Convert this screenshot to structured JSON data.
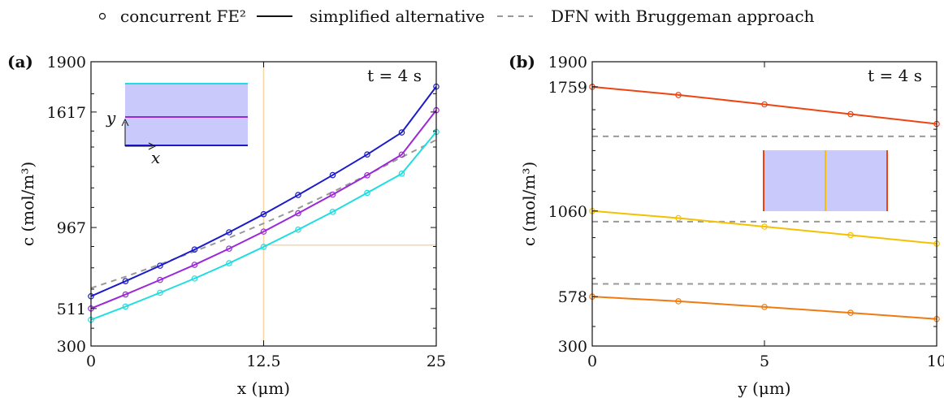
{
  "legend": [
    {
      "label": "concurrent FE²",
      "style": "marker",
      "color": "#111111"
    },
    {
      "label": "simplified alternative",
      "style": "solid",
      "color": "#111111"
    },
    {
      "label": "DFN with Bruggeman approach",
      "style": "dashed",
      "color": "#999999"
    }
  ],
  "chart_data": [
    {
      "panel": "(a)",
      "type": "line",
      "annotation": "t = 4 s",
      "xlabel": "x (μm)",
      "ylabel": "c (mol/m³)",
      "xlim": [
        0,
        25
      ],
      "ylim": [
        300,
        1900
      ],
      "xticks": [
        0,
        12.5,
        25
      ],
      "xtick_labels": [
        "0",
        "12.5",
        "25"
      ],
      "yticks": [
        300,
        511,
        967,
        1617,
        1900
      ],
      "ytick_labels": [
        "300",
        "511",
        "967",
        "1617",
        "1900"
      ],
      "yminor": [
        400,
        620,
        740,
        860,
        1080,
        1190,
        1310,
        1420,
        1510,
        1720
      ],
      "x": [
        0,
        2.5,
        5,
        7.5,
        10,
        12.5,
        15,
        17.5,
        20,
        22.5,
        25
      ],
      "series": [
        {
          "color": "#1a1acc",
          "values": [
            580,
            665,
            752,
            843,
            940,
            1042,
            1150,
            1262,
            1378,
            1502,
            1760
          ]
        },
        {
          "color": "#9a28d8",
          "values": [
            511,
            590,
            672,
            757,
            848,
            944,
            1047,
            1152,
            1261,
            1377,
            1627
          ]
        },
        {
          "color": "#22dde0",
          "values": [
            448,
            522,
            600,
            680,
            766,
            858,
            955,
            1055,
            1162,
            1270,
            1505
          ]
        }
      ],
      "dfn": {
        "color": "#999999",
        "values": [
          626,
          690,
          760,
          833,
          909,
          990,
          1075,
          1167,
          1263,
          1363,
          1460
        ]
      },
      "crosshair": {
        "x": 12.5,
        "y": 868,
        "color": "#f5d6a8"
      },
      "inset": {
        "xlabel": "x",
        "ylabel": "y",
        "fill": "#c9c9fb",
        "lines": [
          "#22dde0",
          "#9a28d8",
          "#1a1acc"
        ]
      }
    },
    {
      "panel": "(b)",
      "type": "line",
      "annotation": "t = 4 s",
      "xlabel": "y (μm)",
      "ylabel": "c (mol/m³)",
      "xlim": [
        0,
        10
      ],
      "ylim": [
        300,
        1900
      ],
      "xticks": [
        0,
        5,
        10
      ],
      "xtick_labels": [
        "0",
        "5",
        "10"
      ],
      "yticks": [
        300,
        578,
        1060,
        1759,
        1900
      ],
      "ytick_labels": [
        "300",
        "578",
        "1060",
        "1759",
        "1900"
      ],
      "yminor": [
        410,
        680,
        800,
        910,
        1170,
        1290,
        1400,
        1520,
        1630
      ],
      "x": [
        0,
        2.5,
        5,
        7.5,
        10
      ],
      "series": [
        {
          "color": "#ee4411",
          "values": [
            1759,
            1713,
            1660,
            1605,
            1550
          ]
        },
        {
          "color": "#f5c000",
          "values": [
            1060,
            1020,
            972,
            924,
            876
          ]
        },
        {
          "color": "#f07a10",
          "values": [
            578,
            552,
            520,
            487,
            452
          ]
        }
      ],
      "dfn": {
        "color": "#999999",
        "levels": [
          1480,
          1000,
          650
        ]
      },
      "inset": {
        "fill": "#c9c9fb",
        "lines": [
          "#ee4411",
          "#f5c000",
          "#ee4411"
        ]
      }
    }
  ]
}
